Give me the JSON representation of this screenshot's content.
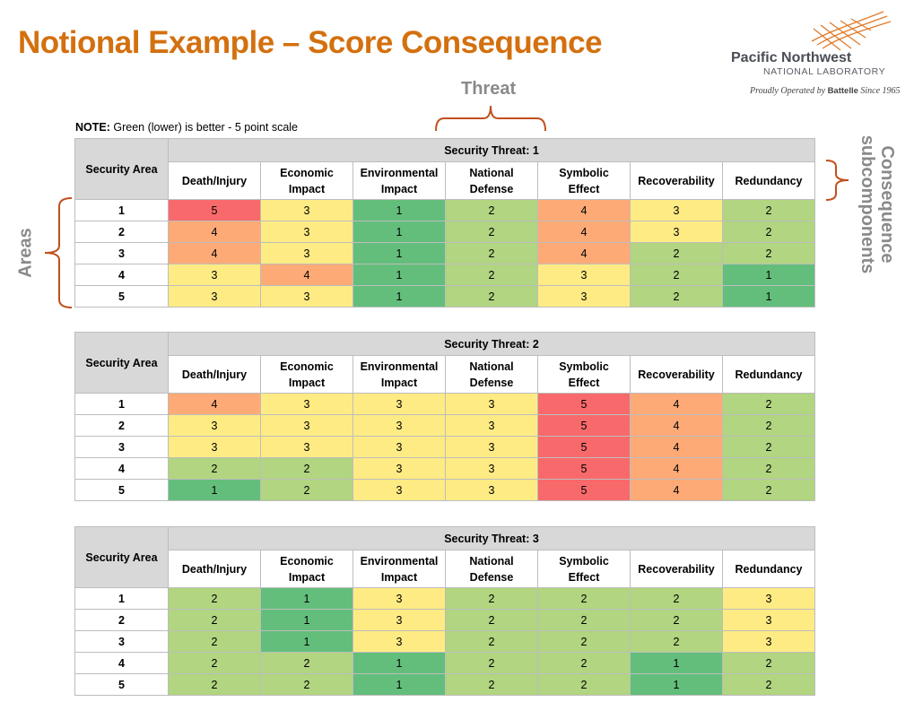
{
  "title": "Notional Example – Score Consequence",
  "logo": {
    "name": "Pacific Northwest",
    "sub": "NATIONAL LABORATORY",
    "operated_prefix": "Proudly Operated by",
    "operated_brand": "Battelle",
    "operated_suffix": "Since 1965"
  },
  "annotations": {
    "threat": "Threat",
    "areas": "Areas",
    "consequence_line1": "Consequence",
    "consequence_line2": "subcomponents"
  },
  "note": {
    "label": "NOTE:",
    "text": " Green (lower) is better - 5 point scale"
  },
  "colors": {
    "title": "#d3700f",
    "score_1": "#63be7b",
    "score_2": "#b1d580",
    "score_3": "#ffeb84",
    "score_4": "#fdaa77",
    "score_5": "#f8696b",
    "header_gray": "#d8d8d8",
    "bracket": "#c0501c"
  },
  "row_header": "Security Area",
  "columns": [
    [
      "Death/Injury"
    ],
    [
      "Economic",
      "Impact"
    ],
    [
      "Environmental",
      "Impact"
    ],
    [
      "National",
      "Defense"
    ],
    [
      "Symbolic",
      "Effect"
    ],
    [
      "Recoverability"
    ],
    [
      "Redundancy"
    ]
  ],
  "tables": [
    {
      "threat": "Security Threat: 1",
      "rows": [
        {
          "area": "1",
          "scores": [
            5,
            3,
            1,
            2,
            4,
            3,
            2
          ]
        },
        {
          "area": "2",
          "scores": [
            4,
            3,
            1,
            2,
            4,
            3,
            2
          ]
        },
        {
          "area": "3",
          "scores": [
            4,
            3,
            1,
            2,
            4,
            2,
            2
          ]
        },
        {
          "area": "4",
          "scores": [
            3,
            4,
            1,
            2,
            3,
            2,
            1
          ]
        },
        {
          "area": "5",
          "scores": [
            3,
            3,
            1,
            2,
            3,
            2,
            1
          ]
        }
      ]
    },
    {
      "threat": "Security Threat: 2",
      "rows": [
        {
          "area": "1",
          "scores": [
            4,
            3,
            3,
            3,
            5,
            4,
            2
          ]
        },
        {
          "area": "2",
          "scores": [
            3,
            3,
            3,
            3,
            5,
            4,
            2
          ]
        },
        {
          "area": "3",
          "scores": [
            3,
            3,
            3,
            3,
            5,
            4,
            2
          ]
        },
        {
          "area": "4",
          "scores": [
            2,
            2,
            3,
            3,
            5,
            4,
            2
          ]
        },
        {
          "area": "5",
          "scores": [
            1,
            2,
            3,
            3,
            5,
            4,
            2
          ]
        }
      ]
    },
    {
      "threat": "Security Threat: 3",
      "rows": [
        {
          "area": "1",
          "scores": [
            2,
            1,
            3,
            2,
            2,
            2,
            3
          ]
        },
        {
          "area": "2",
          "scores": [
            2,
            1,
            3,
            2,
            2,
            2,
            3
          ]
        },
        {
          "area": "3",
          "scores": [
            2,
            1,
            3,
            2,
            2,
            2,
            3
          ]
        },
        {
          "area": "4",
          "scores": [
            2,
            2,
            1,
            2,
            2,
            1,
            2
          ]
        },
        {
          "area": "5",
          "scores": [
            2,
            2,
            1,
            2,
            2,
            1,
            2
          ]
        }
      ]
    }
  ]
}
